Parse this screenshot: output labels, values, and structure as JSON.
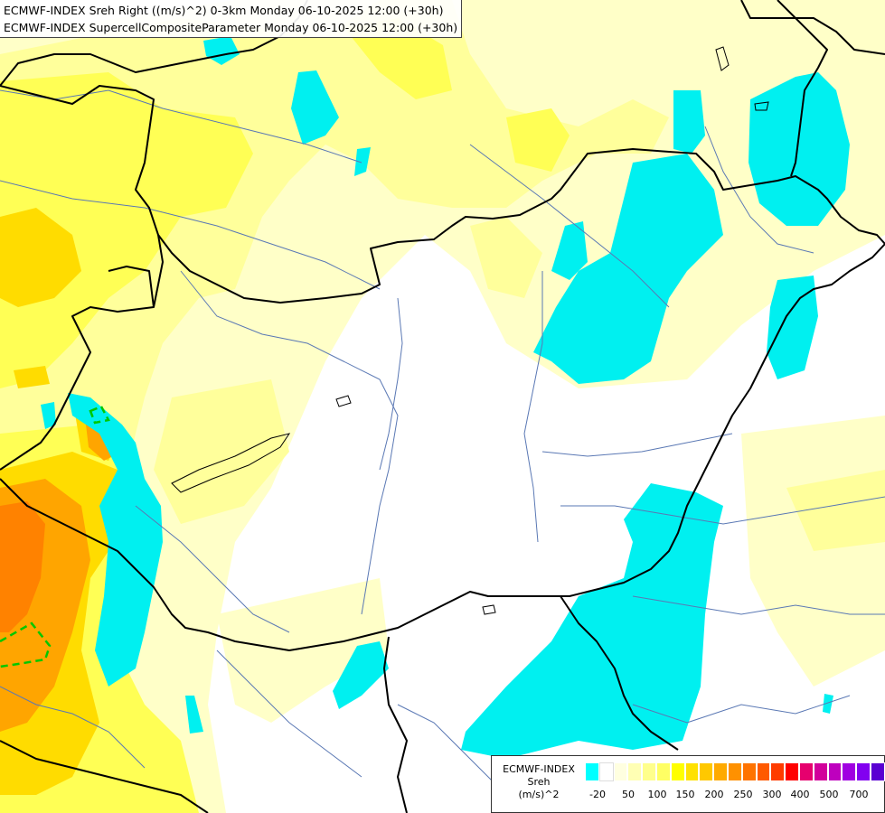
{
  "title": {
    "line1": "ECMWF-INDEX Sreh Right ((m/s)^2) 0-3km Monday 06-10-2025 12:00 (+30h)",
    "line2": "ECMWF-INDEX SupercellCompositeParameter Monday 06-10-2025 12:00 (+30h)"
  },
  "legend": {
    "model": "ECMWF-INDEX",
    "param": "Sreh",
    "unit": "(m/s)^2",
    "colors": [
      "#00ffff",
      "#ffffff",
      "#ffffe0",
      "#ffffb4",
      "#ffff8c",
      "#ffff64",
      "#ffff00",
      "#ffe100",
      "#ffc800",
      "#ffaa00",
      "#ff9100",
      "#ff7300",
      "#ff5a00",
      "#ff3c00",
      "#ff0000",
      "#e6006e",
      "#d2009b",
      "#be00be",
      "#a000e1",
      "#8200f0",
      "#5a00d2",
      "#3200aa",
      "#000082"
    ],
    "ticks": [
      "-20",
      "50",
      "100",
      "150",
      "200",
      "250",
      "300",
      "400",
      "500",
      "700"
    ]
  },
  "colors": {
    "cyan": "#00ffff",
    "pale_yellow": "#ffffc8",
    "light_yellow": "#ffff9b",
    "yellow": "#ffff55",
    "gold": "#ffdc00",
    "orange": "#ffa500",
    "dark_orange": "#ff7f00",
    "border": "#000000",
    "river": "#5a78b4",
    "scp_contour": "#00c800"
  }
}
